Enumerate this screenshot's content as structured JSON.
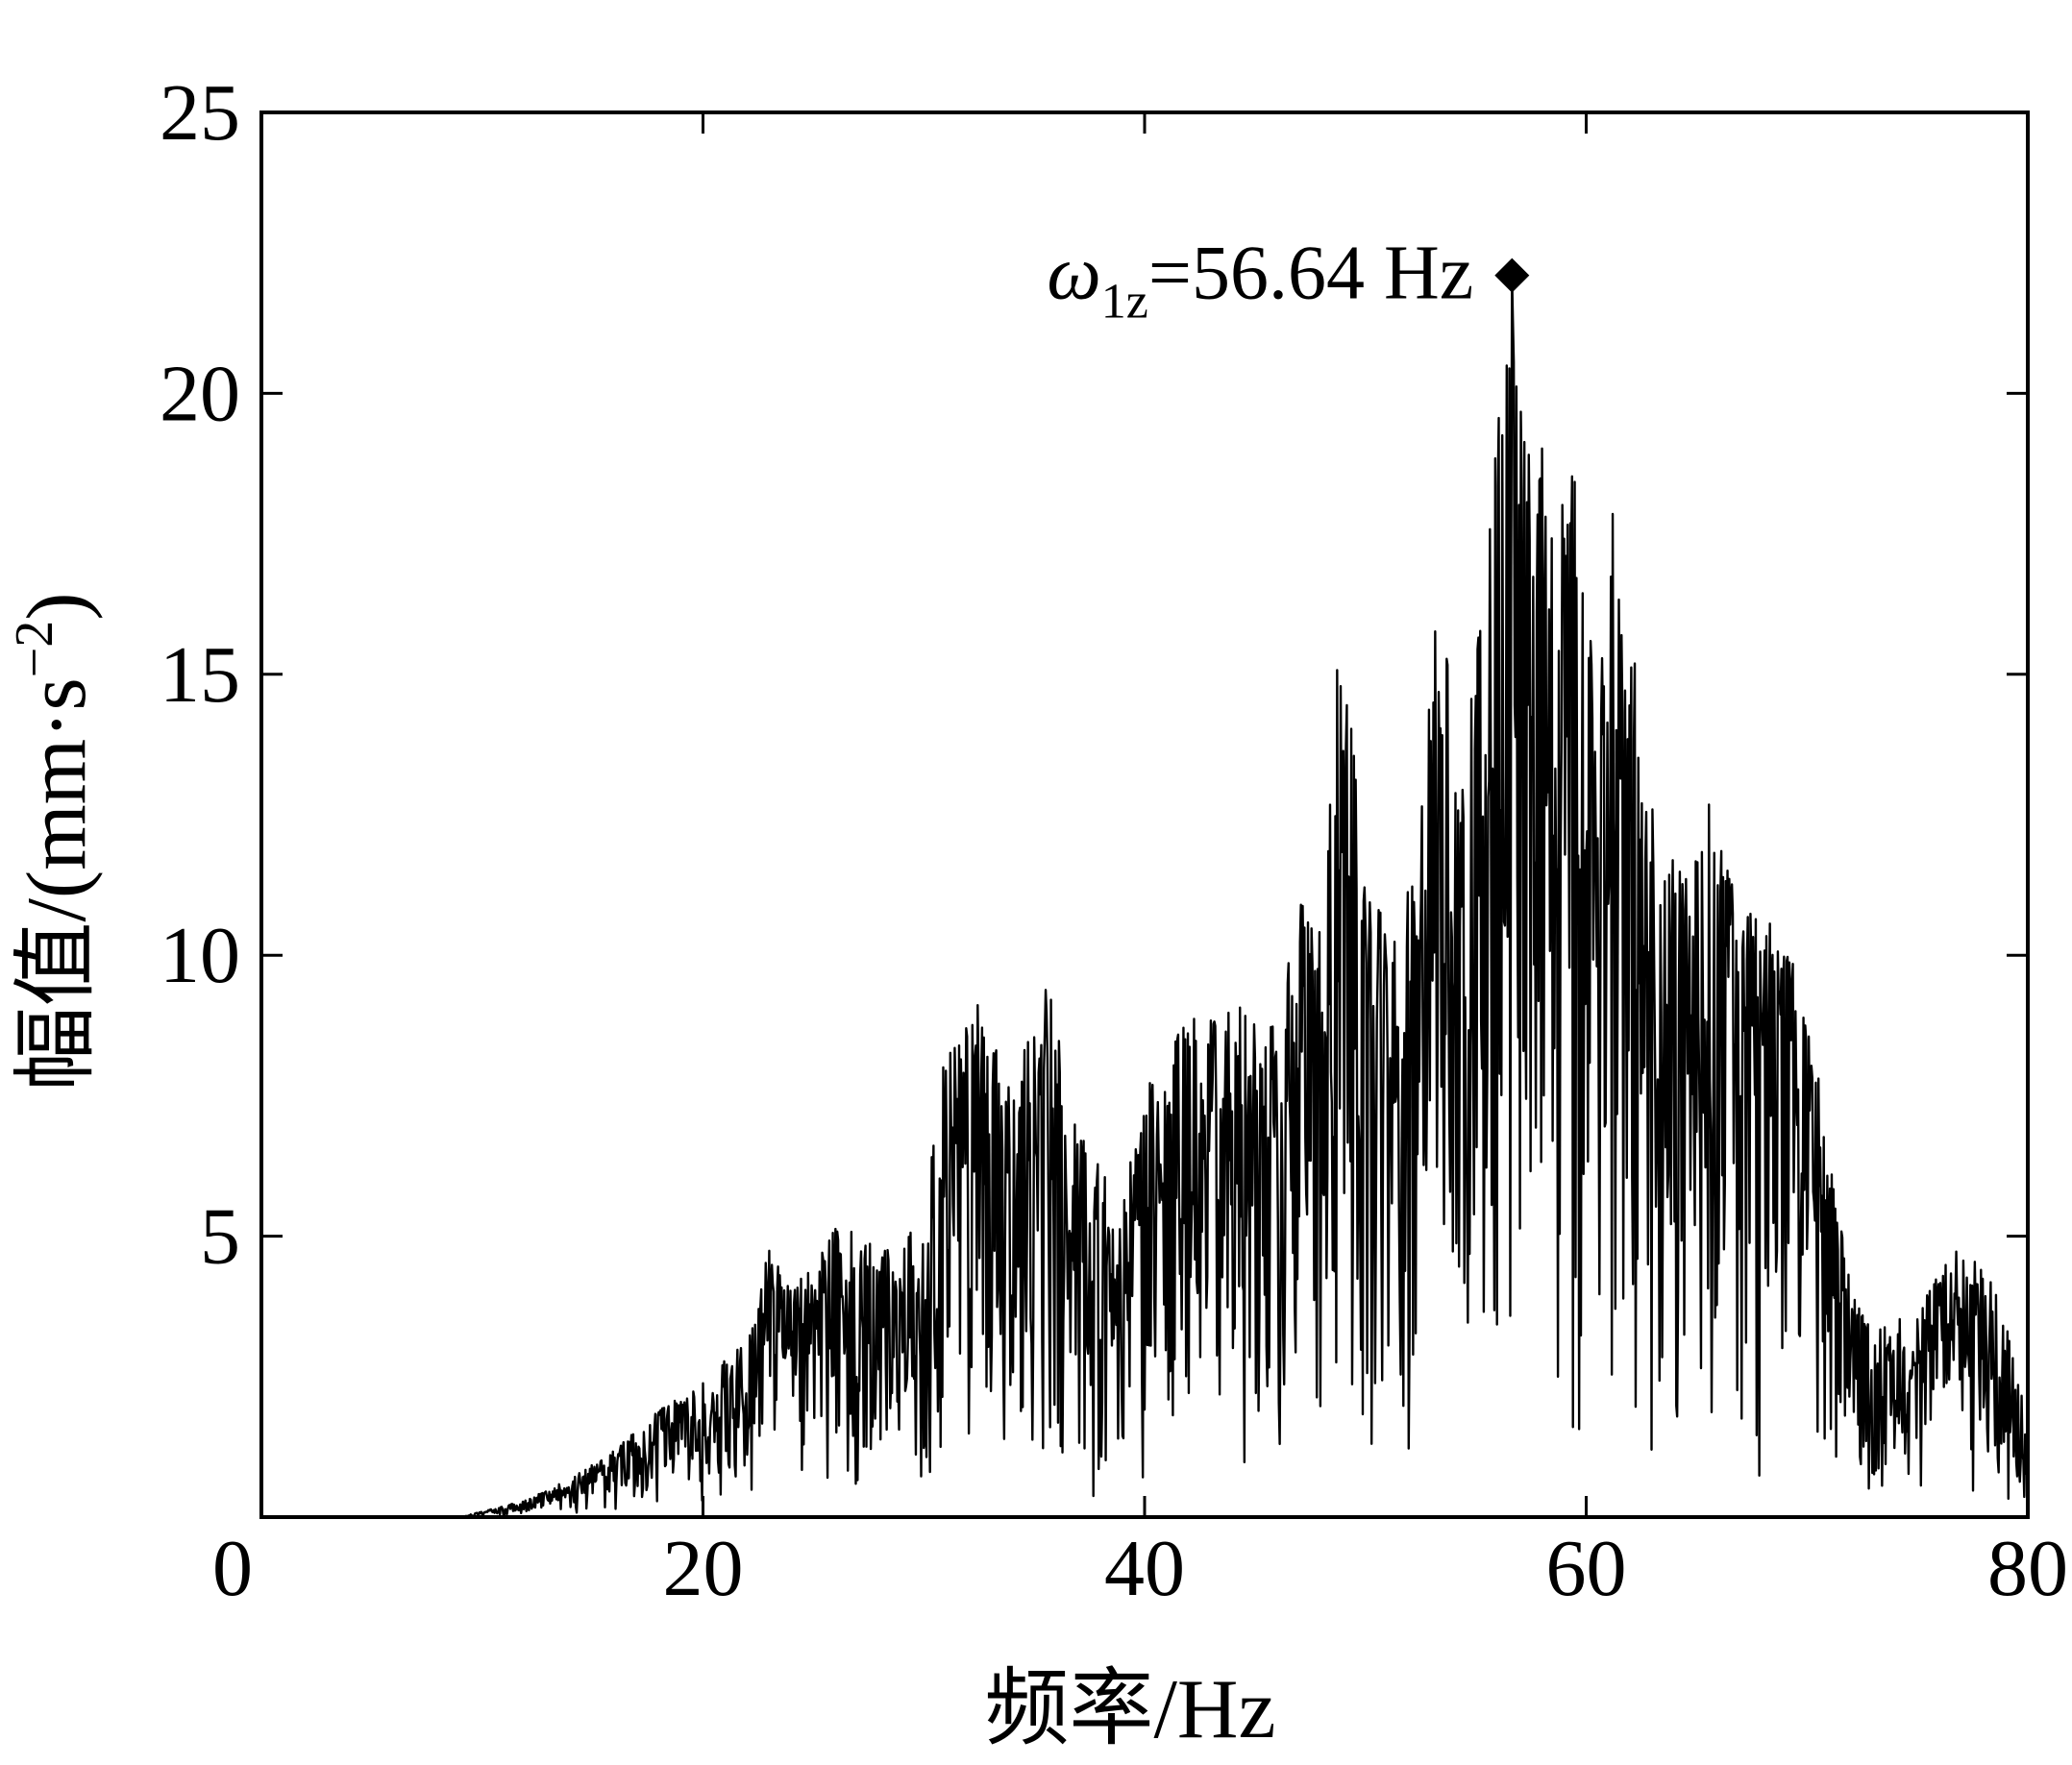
{
  "chart_data": {
    "type": "line",
    "title": "",
    "xlabel": "频率/Hz",
    "ylabel": "幅值/(mm·s",
    "ylabel_sup": "−2",
    "ylabel_close": ")",
    "xlim": [
      0,
      80
    ],
    "ylim": [
      0,
      25
    ],
    "x_ticks": [
      {
        "value": 0,
        "label": "0"
      },
      {
        "value": 20,
        "label": "20"
      },
      {
        "value": 40,
        "label": "40"
      },
      {
        "value": 60,
        "label": "60"
      },
      {
        "value": 80,
        "label": "80"
      }
    ],
    "y_ticks": [
      {
        "value": 0,
        "label": "0"
      },
      {
        "value": 5,
        "label": "5"
      },
      {
        "value": 10,
        "label": "10"
      },
      {
        "value": 15,
        "label": "15"
      },
      {
        "value": 20,
        "label": "20"
      },
      {
        "value": 25,
        "label": "25"
      }
    ],
    "grid": false,
    "legend": "none",
    "line_color": "#000000",
    "annotation": {
      "symbol": "ω",
      "subscript": "1z",
      "text": "=56.64 Hz",
      "x": 56.64,
      "y": 22.1,
      "marker": "diamond"
    },
    "envelope": [
      [
        0,
        0
      ],
      [
        9,
        0
      ],
      [
        10,
        0.1
      ],
      [
        12,
        0.3
      ],
      [
        14,
        0.7
      ],
      [
        16,
        1.2
      ],
      [
        18,
        1.9
      ],
      [
        20,
        2.4
      ],
      [
        22,
        3.2
      ],
      [
        23,
        4.8
      ],
      [
        24,
        4.0
      ],
      [
        26,
        5.3
      ],
      [
        28,
        4.8
      ],
      [
        30,
        5.6
      ],
      [
        31,
        8.4
      ],
      [
        32.5,
        9.2
      ],
      [
        34,
        7.5
      ],
      [
        35.5,
        9.7
      ],
      [
        37,
        6.9
      ],
      [
        39,
        5.6
      ],
      [
        40,
        7.6
      ],
      [
        42,
        8.9
      ],
      [
        44,
        9.1
      ],
      [
        46,
        9.0
      ],
      [
        47,
        11.3
      ],
      [
        48,
        10.4
      ],
      [
        48.8,
        16.7
      ],
      [
        50,
        11.5
      ],
      [
        51,
        10.5
      ],
      [
        52,
        11.4
      ],
      [
        53.3,
        16.3
      ],
      [
        54.5,
        13.1
      ],
      [
        55.5,
        18.9
      ],
      [
        56.64,
        22.1
      ],
      [
        57.5,
        18.8
      ],
      [
        58.5,
        19.3
      ],
      [
        59.5,
        19.4
      ],
      [
        60.5,
        14.6
      ],
      [
        61.3,
        18.8
      ],
      [
        62.5,
        14.0
      ],
      [
        64,
        11.7
      ],
      [
        65.5,
        12.9
      ],
      [
        67,
        10.8
      ],
      [
        68.5,
        10.6
      ],
      [
        70,
        9.4
      ],
      [
        71,
        6.5
      ],
      [
        72,
        4.3
      ],
      [
        73,
        3.3
      ],
      [
        74,
        3.6
      ],
      [
        75,
        3.6
      ],
      [
        76.5,
        4.8
      ],
      [
        78,
        4.5
      ],
      [
        79,
        3.6
      ],
      [
        80,
        1.6
      ]
    ]
  }
}
